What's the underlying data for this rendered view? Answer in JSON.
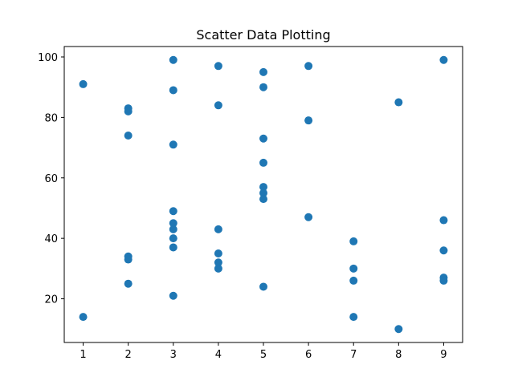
{
  "chart_data": {
    "type": "scatter",
    "title": "Scatter Data Plotting",
    "xlabel": "",
    "ylabel": "",
    "xlim": [
      0.58,
      9.42
    ],
    "ylim": [
      5.55,
      103.45
    ],
    "x_ticks": [
      1,
      2,
      3,
      4,
      5,
      6,
      7,
      8,
      9
    ],
    "y_ticks": [
      20,
      40,
      60,
      80,
      100
    ],
    "grid": false,
    "marker_color": "#1f77b4",
    "series": [
      {
        "points": [
          {
            "x": 1,
            "y": 91
          },
          {
            "x": 1,
            "y": 14
          },
          {
            "x": 2,
            "y": 83
          },
          {
            "x": 2,
            "y": 82
          },
          {
            "x": 2,
            "y": 74
          },
          {
            "x": 2,
            "y": 34
          },
          {
            "x": 2,
            "y": 33
          },
          {
            "x": 2,
            "y": 25
          },
          {
            "x": 3,
            "y": 99
          },
          {
            "x": 3,
            "y": 89
          },
          {
            "x": 3,
            "y": 71
          },
          {
            "x": 3,
            "y": 49
          },
          {
            "x": 3,
            "y": 45
          },
          {
            "x": 3,
            "y": 43
          },
          {
            "x": 3,
            "y": 40
          },
          {
            "x": 3,
            "y": 37
          },
          {
            "x": 3,
            "y": 21
          },
          {
            "x": 4,
            "y": 97
          },
          {
            "x": 4,
            "y": 84
          },
          {
            "x": 4,
            "y": 43
          },
          {
            "x": 4,
            "y": 35
          },
          {
            "x": 4,
            "y": 32
          },
          {
            "x": 4,
            "y": 30
          },
          {
            "x": 5,
            "y": 95
          },
          {
            "x": 5,
            "y": 90
          },
          {
            "x": 5,
            "y": 73
          },
          {
            "x": 5,
            "y": 65
          },
          {
            "x": 5,
            "y": 57
          },
          {
            "x": 5,
            "y": 55
          },
          {
            "x": 5,
            "y": 53
          },
          {
            "x": 5,
            "y": 24
          },
          {
            "x": 6,
            "y": 97
          },
          {
            "x": 6,
            "y": 79
          },
          {
            "x": 6,
            "y": 47
          },
          {
            "x": 7,
            "y": 39
          },
          {
            "x": 7,
            "y": 30
          },
          {
            "x": 7,
            "y": 26
          },
          {
            "x": 7,
            "y": 14
          },
          {
            "x": 8,
            "y": 85
          },
          {
            "x": 8,
            "y": 10
          },
          {
            "x": 9,
            "y": 99
          },
          {
            "x": 9,
            "y": 46
          },
          {
            "x": 9,
            "y": 36
          },
          {
            "x": 9,
            "y": 27
          },
          {
            "x": 9,
            "y": 26
          }
        ]
      }
    ]
  }
}
